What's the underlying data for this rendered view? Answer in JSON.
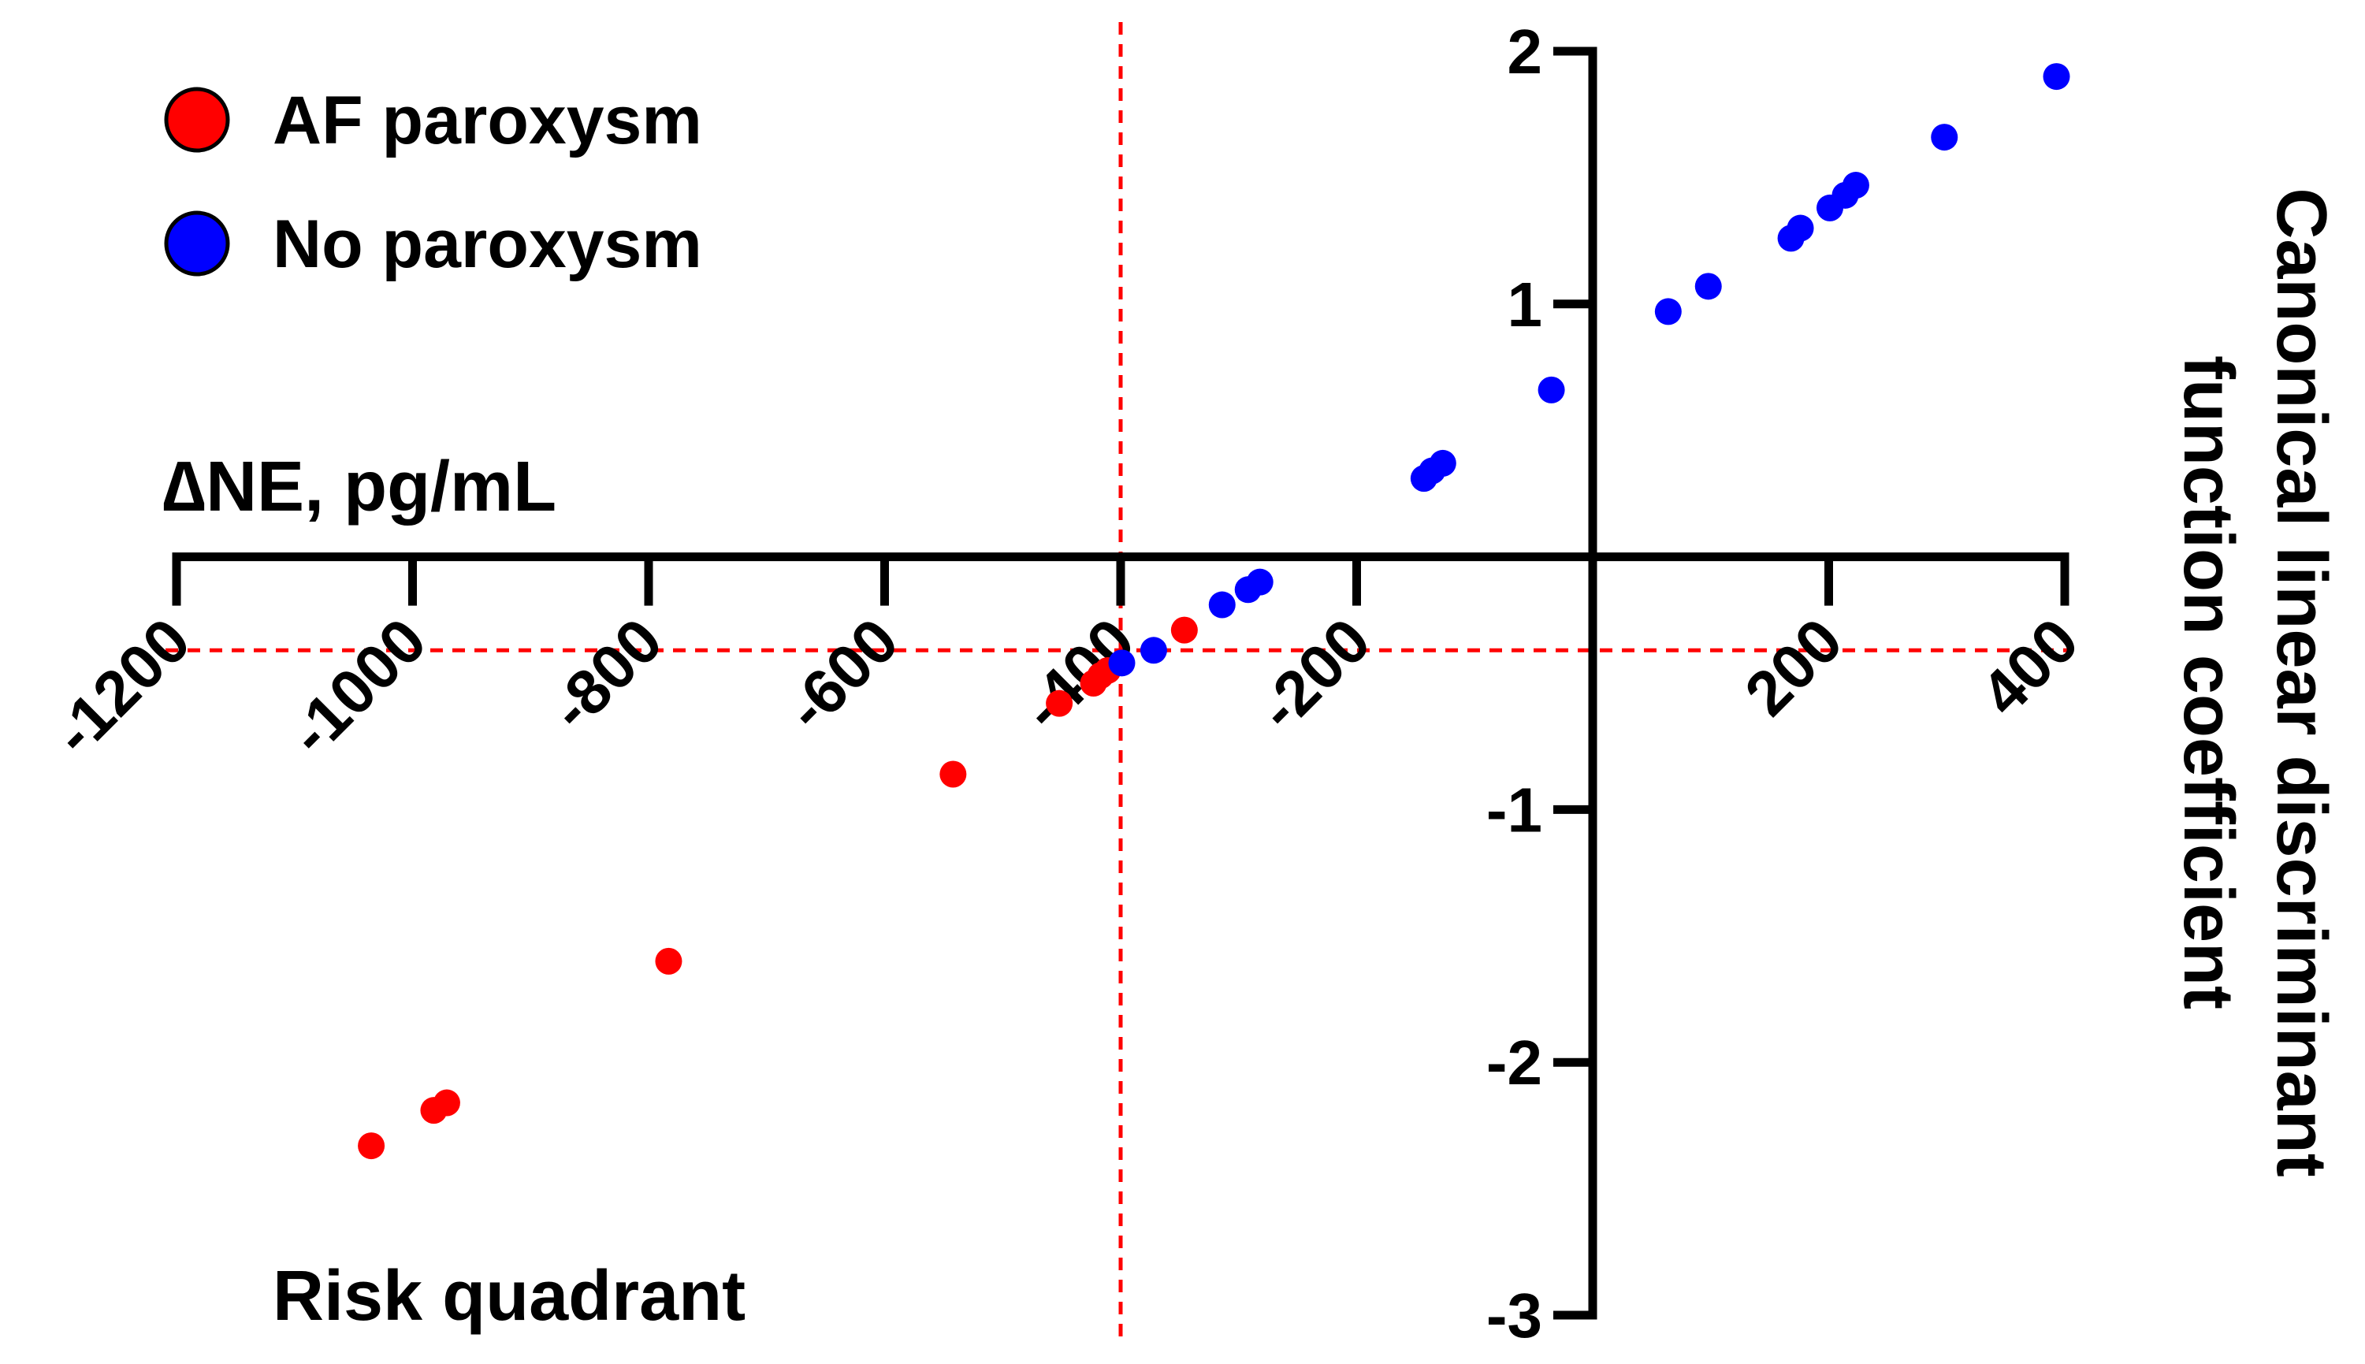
{
  "chart_data": {
    "type": "scatter",
    "xlabel": "∆NE, pg/mL",
    "ylabel_lines": [
      "Canonical linear discriminant",
      "function coefficient"
    ],
    "xlim": [
      -1200,
      400
    ],
    "ylim": [
      -3,
      2
    ],
    "xticks": [
      -1200,
      -1000,
      -800,
      -600,
      -400,
      -200,
      200,
      400
    ],
    "xtick_labels": [
      "-1200",
      "-1000",
      "-800",
      "-600",
      "-400",
      "-200",
      "200",
      "400"
    ],
    "yticks": [
      2,
      1,
      -1,
      -2,
      -3
    ],
    "ytick_labels": [
      "2",
      "1",
      "-1",
      "-2",
      "-3"
    ],
    "reference_lines": {
      "x": -400,
      "y": -0.37,
      "color": "#ff0000",
      "style": "dashed"
    },
    "annotation": "Risk quadrant",
    "legend_position": "top-left",
    "series": [
      {
        "name": "AF paroxysm",
        "color": "#ff0000",
        "x": [
          -1035,
          -982,
          -971,
          -783,
          -542,
          -452,
          -423,
          -417,
          -411,
          -346
        ],
        "y": [
          -2.33,
          -2.19,
          -2.16,
          -1.6,
          -0.86,
          -0.58,
          -0.5,
          -0.47,
          -0.45,
          -0.29
        ]
      },
      {
        "name": "No paroxysm",
        "color": "#0000ff",
        "x": [
          -399,
          -372,
          -314,
          -292,
          -282,
          -143,
          -136,
          -127,
          -35,
          64,
          98,
          168,
          176,
          201,
          214,
          223,
          298,
          393
        ],
        "y": [
          -0.42,
          -0.37,
          -0.19,
          -0.13,
          -0.1,
          0.31,
          0.34,
          0.37,
          0.66,
          0.97,
          1.07,
          1.26,
          1.3,
          1.38,
          1.43,
          1.47,
          1.66,
          1.9
        ]
      }
    ]
  }
}
